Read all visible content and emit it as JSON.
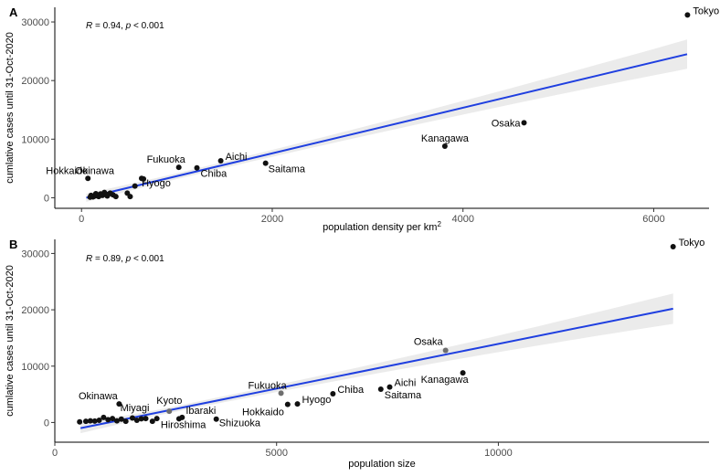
{
  "chart_data": [
    {
      "type": "scatter",
      "panel": "A",
      "stat": {
        "r_label": "R",
        "r_value": " = 0.94, ",
        "p_label": "p",
        "p_value": " < 0.001"
      },
      "xlabel": "population density per km",
      "xlabel_superscript": "2",
      "ylabel": "cumlative cases until 31-Oct-2020",
      "xlim": [
        -280,
        6580
      ],
      "ylim": [
        -1800,
        32500
      ],
      "xticks": [
        0,
        2000,
        4000,
        6000
      ],
      "yticks": [
        0,
        10000,
        20000,
        30000
      ],
      "fit": {
        "x0": 50,
        "y0": 0,
        "x1": 6350,
        "y1": 24500,
        "band_halfwidth_start": 700,
        "band_halfwidth_mid": 500,
        "band_halfwidth_end": 2500
      },
      "points": [
        {
          "x": 6354,
          "y": 31200,
          "label": "Tokyo"
        },
        {
          "x": 4640,
          "y": 12800,
          "label": "Osaka"
        },
        {
          "x": 3810,
          "y": 8800,
          "label": "Kanagawa"
        },
        {
          "x": 1460,
          "y": 6300,
          "label": "Aichi"
        },
        {
          "x": 1930,
          "y": 5900,
          "label": "Saitama"
        },
        {
          "x": 1210,
          "y": 5100,
          "label": "Chiba"
        },
        {
          "x": 1020,
          "y": 5200,
          "label": "Fukuoka"
        },
        {
          "x": 650,
          "y": 3200,
          "label": "Hyogo"
        },
        {
          "x": 630,
          "y": 3300,
          "label": "Okinawa"
        },
        {
          "x": 67,
          "y": 3300,
          "label": "Hokkaido"
        },
        {
          "x": 560,
          "y": 2000,
          "label": ""
        },
        {
          "x": 480,
          "y": 800,
          "label": ""
        },
        {
          "x": 510,
          "y": 200,
          "label": ""
        },
        {
          "x": 330,
          "y": 500,
          "label": ""
        },
        {
          "x": 300,
          "y": 800,
          "label": ""
        },
        {
          "x": 270,
          "y": 300,
          "label": ""
        },
        {
          "x": 240,
          "y": 900,
          "label": ""
        },
        {
          "x": 220,
          "y": 400,
          "label": ""
        },
        {
          "x": 200,
          "y": 650,
          "label": ""
        },
        {
          "x": 180,
          "y": 200,
          "label": ""
        },
        {
          "x": 160,
          "y": 500,
          "label": ""
        },
        {
          "x": 140,
          "y": 300,
          "label": ""
        },
        {
          "x": 120,
          "y": 150,
          "label": ""
        },
        {
          "x": 100,
          "y": 400,
          "label": ""
        },
        {
          "x": 90,
          "y": 100,
          "label": ""
        },
        {
          "x": 150,
          "y": 700,
          "label": ""
        },
        {
          "x": 280,
          "y": 550,
          "label": ""
        },
        {
          "x": 360,
          "y": 200,
          "label": ""
        }
      ]
    },
    {
      "type": "scatter",
      "panel": "B",
      "stat": {
        "r_label": "R",
        "r_value": " = 0.89, ",
        "p_label": "p",
        "p_value": " < 0.001"
      },
      "xlabel": "population size",
      "xlabel_superscript": "",
      "ylabel": "cumlative cases until 31-Oct-2020",
      "xlim": [
        0,
        14750
      ],
      "ylim": [
        -3500,
        32500
      ],
      "xticks": [
        0,
        5000,
        10000
      ],
      "yticks": [
        0,
        10000,
        20000,
        30000
      ],
      "fit": {
        "x0": 580,
        "y0": -1000,
        "x1": 13940,
        "y1": 20200,
        "band_halfwidth_start": 900,
        "band_halfwidth_mid": 500,
        "band_halfwidth_end": 2700
      },
      "points": [
        {
          "x": 13940,
          "y": 31200,
          "label": "Tokyo"
        },
        {
          "x": 8810,
          "y": 12800,
          "label": "Osaka",
          "grey": true
        },
        {
          "x": 9200,
          "y": 8800,
          "label": "Kanagawa"
        },
        {
          "x": 7550,
          "y": 6300,
          "label": "Aichi"
        },
        {
          "x": 7350,
          "y": 5900,
          "label": "Saitama"
        },
        {
          "x": 6270,
          "y": 5100,
          "label": "Chiba"
        },
        {
          "x": 5100,
          "y": 5200,
          "label": "Fukuoka",
          "grey": true
        },
        {
          "x": 5470,
          "y": 3300,
          "label": "Hyogo"
        },
        {
          "x": 5250,
          "y": 3200,
          "label": "Hokkaido"
        },
        {
          "x": 1450,
          "y": 3300,
          "label": "Okinawa"
        },
        {
          "x": 2580,
          "y": 2000,
          "label": "Kyoto",
          "grey": true
        },
        {
          "x": 2300,
          "y": 700,
          "label": "Miyagi"
        },
        {
          "x": 2870,
          "y": 900,
          "label": "Ibaraki"
        },
        {
          "x": 2800,
          "y": 650,
          "label": "Hiroshima"
        },
        {
          "x": 3640,
          "y": 600,
          "label": "Shizuoka"
        },
        {
          "x": 560,
          "y": 100,
          "label": ""
        },
        {
          "x": 700,
          "y": 200,
          "label": ""
        },
        {
          "x": 800,
          "y": 300,
          "label": ""
        },
        {
          "x": 900,
          "y": 250,
          "label": ""
        },
        {
          "x": 1000,
          "y": 400,
          "label": ""
        },
        {
          "x": 1100,
          "y": 900,
          "label": ""
        },
        {
          "x": 1200,
          "y": 500,
          "label": ""
        },
        {
          "x": 1300,
          "y": 700,
          "label": ""
        },
        {
          "x": 1400,
          "y": 300,
          "label": ""
        },
        {
          "x": 1500,
          "y": 600,
          "label": ""
        },
        {
          "x": 1600,
          "y": 200,
          "label": ""
        },
        {
          "x": 1750,
          "y": 800,
          "label": ""
        },
        {
          "x": 1850,
          "y": 400,
          "label": ""
        },
        {
          "x": 1950,
          "y": 650,
          "label": ""
        },
        {
          "x": 2050,
          "y": 700,
          "label": ""
        },
        {
          "x": 2200,
          "y": 200,
          "label": ""
        }
      ]
    }
  ]
}
